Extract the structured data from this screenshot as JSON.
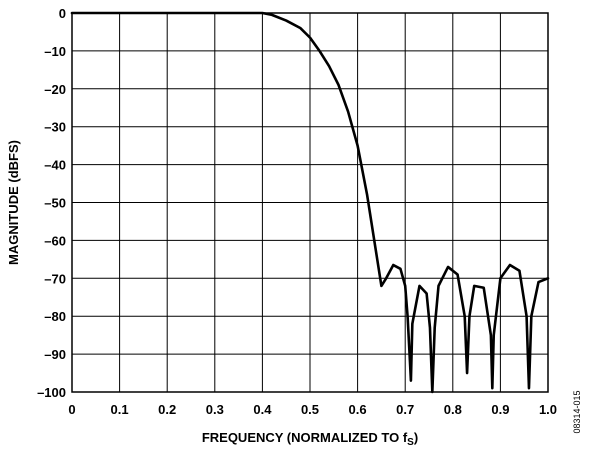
{
  "chart_data": {
    "type": "line",
    "title": "",
    "xlabel": "FREQUENCY (NORMALIZED TO f",
    "xlabel_sub": "S",
    "xlabel_close": ")",
    "ylabel": "MAGNITUDE (dBFS)",
    "xlim": [
      0,
      1.0
    ],
    "ylim": [
      -100,
      0
    ],
    "grid": true,
    "legend": "none",
    "x_ticks": [
      "0",
      "0.1",
      "0.2",
      "0.3",
      "0.4",
      "0.5",
      "0.6",
      "0.7",
      "0.8",
      "0.9",
      "1.0"
    ],
    "y_ticks": [
      "0",
      "–10",
      "–20",
      "–30",
      "–40",
      "–50",
      "–60",
      "–70",
      "–80",
      "–90",
      "–100"
    ],
    "series": [
      {
        "color": "#000000",
        "x": [
          0,
          0.1,
          0.2,
          0.3,
          0.35,
          0.4,
          0.42,
          0.45,
          0.48,
          0.5,
          0.52,
          0.54,
          0.56,
          0.58,
          0.6,
          0.62,
          0.64,
          0.65,
          0.66,
          0.675,
          0.69,
          0.7,
          0.705,
          0.71,
          0.712,
          0.715,
          0.73,
          0.745,
          0.752,
          0.757,
          0.762,
          0.77,
          0.79,
          0.81,
          0.825,
          0.83,
          0.835,
          0.845,
          0.865,
          0.88,
          0.883,
          0.886,
          0.9,
          0.92,
          0.94,
          0.955,
          0.96,
          0.965,
          0.98,
          1.0
        ],
        "y": [
          0,
          0,
          0,
          0,
          0,
          0,
          -0.5,
          -2,
          -4,
          -6.5,
          -10,
          -14,
          -19,
          -26,
          -35,
          -48,
          -64,
          -72,
          -70,
          -66.5,
          -67.5,
          -72,
          -80,
          -92,
          -97,
          -82,
          -72,
          -74,
          -83,
          -100,
          -83,
          -72,
          -67,
          -69,
          -80,
          -95,
          -80,
          -72,
          -72.5,
          -85,
          -99,
          -85,
          -70,
          -66.5,
          -68,
          -80,
          -99,
          -80,
          -71,
          -70
        ]
      }
    ]
  },
  "side_code": "08314-015"
}
